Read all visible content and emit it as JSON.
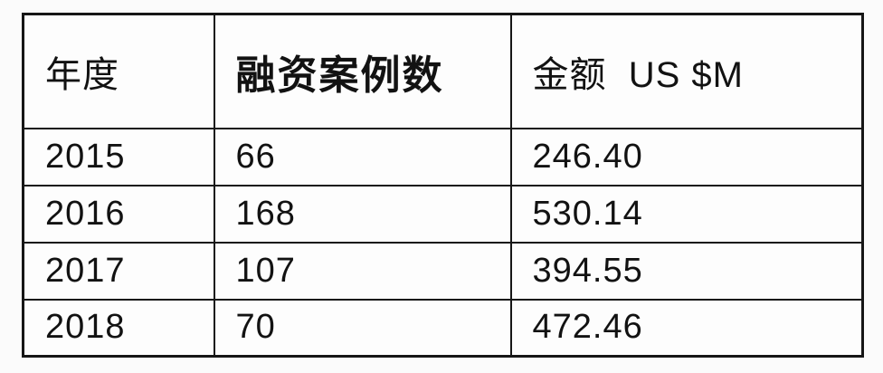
{
  "page": {
    "background": "#fbfbfb",
    "border_color": "#161616",
    "text_color": "#121212"
  },
  "table": {
    "headers": {
      "year": "年度",
      "cases": "融资案例数",
      "amount": "金额  US $M"
    },
    "rows": [
      {
        "year": "2015",
        "cases": "66",
        "amount": "246.40"
      },
      {
        "year": "2016",
        "cases": "168",
        "amount": "530.14"
      },
      {
        "year": "2017",
        "cases": "107",
        "amount": "394.55"
      },
      {
        "year": "2018",
        "cases": "70",
        "amount": "472.46"
      }
    ]
  },
  "chart_data": {
    "type": "table",
    "title": "",
    "columns": [
      "年度",
      "融资案例数",
      "金额 US $M"
    ],
    "rows": [
      [
        "2015",
        66,
        246.4
      ],
      [
        "2016",
        168,
        530.14
      ],
      [
        "2017",
        107,
        394.55
      ],
      [
        "2018",
        70,
        472.46
      ]
    ],
    "notes": {
      "cases_series": {
        "name": "融资案例数",
        "values": [
          66,
          168,
          107,
          70
        ]
      },
      "amount_series": {
        "name": "金额 US $M",
        "values": [
          246.4,
          530.14,
          394.55,
          472.46
        ]
      },
      "categories": [
        "2015",
        "2016",
        "2017",
        "2018"
      ]
    }
  }
}
